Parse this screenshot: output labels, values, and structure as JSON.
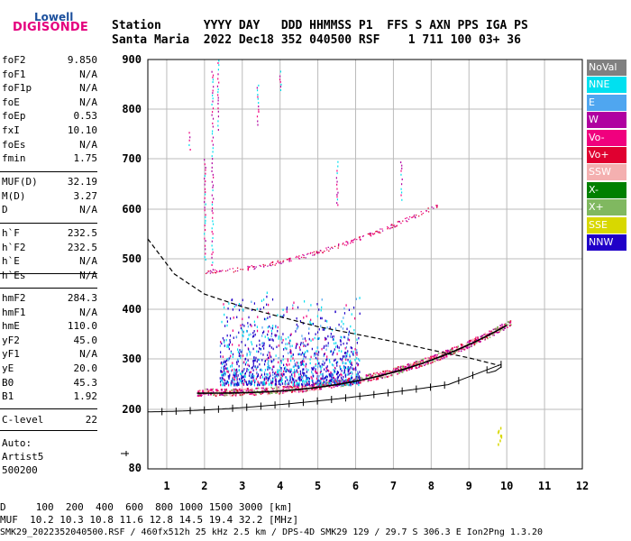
{
  "logo": {
    "top": "Lowell",
    "bottom": "DIGISONDE"
  },
  "header": {
    "line1": "Station      YYYY DAY   DDD HHMMSS P1  FFS S AXN PPS IGA PS",
    "line2": "Santa Maria  2022 Dec18 352 040500 RSF    1 711 100 03+ 36"
  },
  "params_a": [
    {
      "k": "foF2",
      "v": "9.850"
    },
    {
      "k": "foF1",
      "v": "N/A"
    },
    {
      "k": "foF1p",
      "v": "N/A"
    },
    {
      "k": "foE",
      "v": "N/A"
    },
    {
      "k": "foEp",
      "v": "0.53"
    },
    {
      "k": "fxI",
      "v": "10.10"
    },
    {
      "k": "foEs",
      "v": "N/A"
    },
    {
      "k": "fmin",
      "v": "1.75"
    }
  ],
  "params_b": [
    {
      "k": "MUF(D)",
      "v": "32.19"
    },
    {
      "k": "M(D)",
      "v": "3.27"
    },
    {
      "k": "D",
      "v": "N/A"
    }
  ],
  "params_c": [
    {
      "k": "h`F",
      "v": "232.5"
    },
    {
      "k": "h`F2",
      "v": "232.5"
    },
    {
      "k": "h`E",
      "v": "N/A"
    },
    {
      "k": "h`Es",
      "v": "N/A"
    }
  ],
  "params_d": [
    {
      "k": "hmF2",
      "v": "284.3"
    },
    {
      "k": "hmF1",
      "v": "N/A"
    },
    {
      "k": "hmE",
      "v": "110.0"
    },
    {
      "k": "yF2",
      "v": "45.0"
    },
    {
      "k": "yF1",
      "v": "N/A"
    },
    {
      "k": "yE",
      "v": "20.0"
    },
    {
      "k": "B0",
      "v": "45.3"
    },
    {
      "k": "B1",
      "v": "1.92"
    }
  ],
  "clevel": {
    "k": "C-level",
    "v": "22"
  },
  "auto": [
    "Auto:",
    "Artist5",
    "500200"
  ],
  "legend": [
    {
      "label": "NoVal",
      "color": "#808080"
    },
    {
      "label": "NNE",
      "color": "#00e0f0"
    },
    {
      "label": "E",
      "color": "#4fa6f0"
    },
    {
      "label": "W",
      "color": "#b000a0"
    },
    {
      "label": "Vo-",
      "color": "#f0007e"
    },
    {
      "label": "Vo+",
      "color": "#e00030"
    },
    {
      "label": "SSW",
      "color": "#f4b0b0"
    },
    {
      "label": "X-",
      "color": "#008000"
    },
    {
      "label": "X+",
      "color": "#80b860"
    },
    {
      "label": "SSE",
      "color": "#d8d800"
    },
    {
      "label": "NNW",
      "color": "#2000c8"
    }
  ],
  "chart_data": {
    "type": "scatter",
    "title": "",
    "xlabel": "",
    "ylabel": "",
    "x_ticks": [
      "1",
      "2",
      "3",
      "4",
      "5",
      "6",
      "7",
      "8",
      "9",
      "10",
      "11",
      "12"
    ],
    "y_ticks": [
      "80",
      "200",
      "300",
      "400",
      "500",
      "600",
      "700",
      "800",
      "900"
    ],
    "xlim": [
      0.5,
      12
    ],
    "y_axis": "nonlinear height (km)",
    "grid": true
  },
  "bottom": {
    "line1": "D     100  200  400  600  800 1000 1500 3000 [km]",
    "line2": "MUF  10.2 10.3 10.8 11.6 12.8 14.5 19.4 32.2 [MHz]",
    "line3": "SMK29_2022352040500.RSF / 460fx512h 25 kHz 2.5 km / DPS-4D SMK29 129 / 29.7 S 306.3 E Ion2Png 1.3.20"
  }
}
